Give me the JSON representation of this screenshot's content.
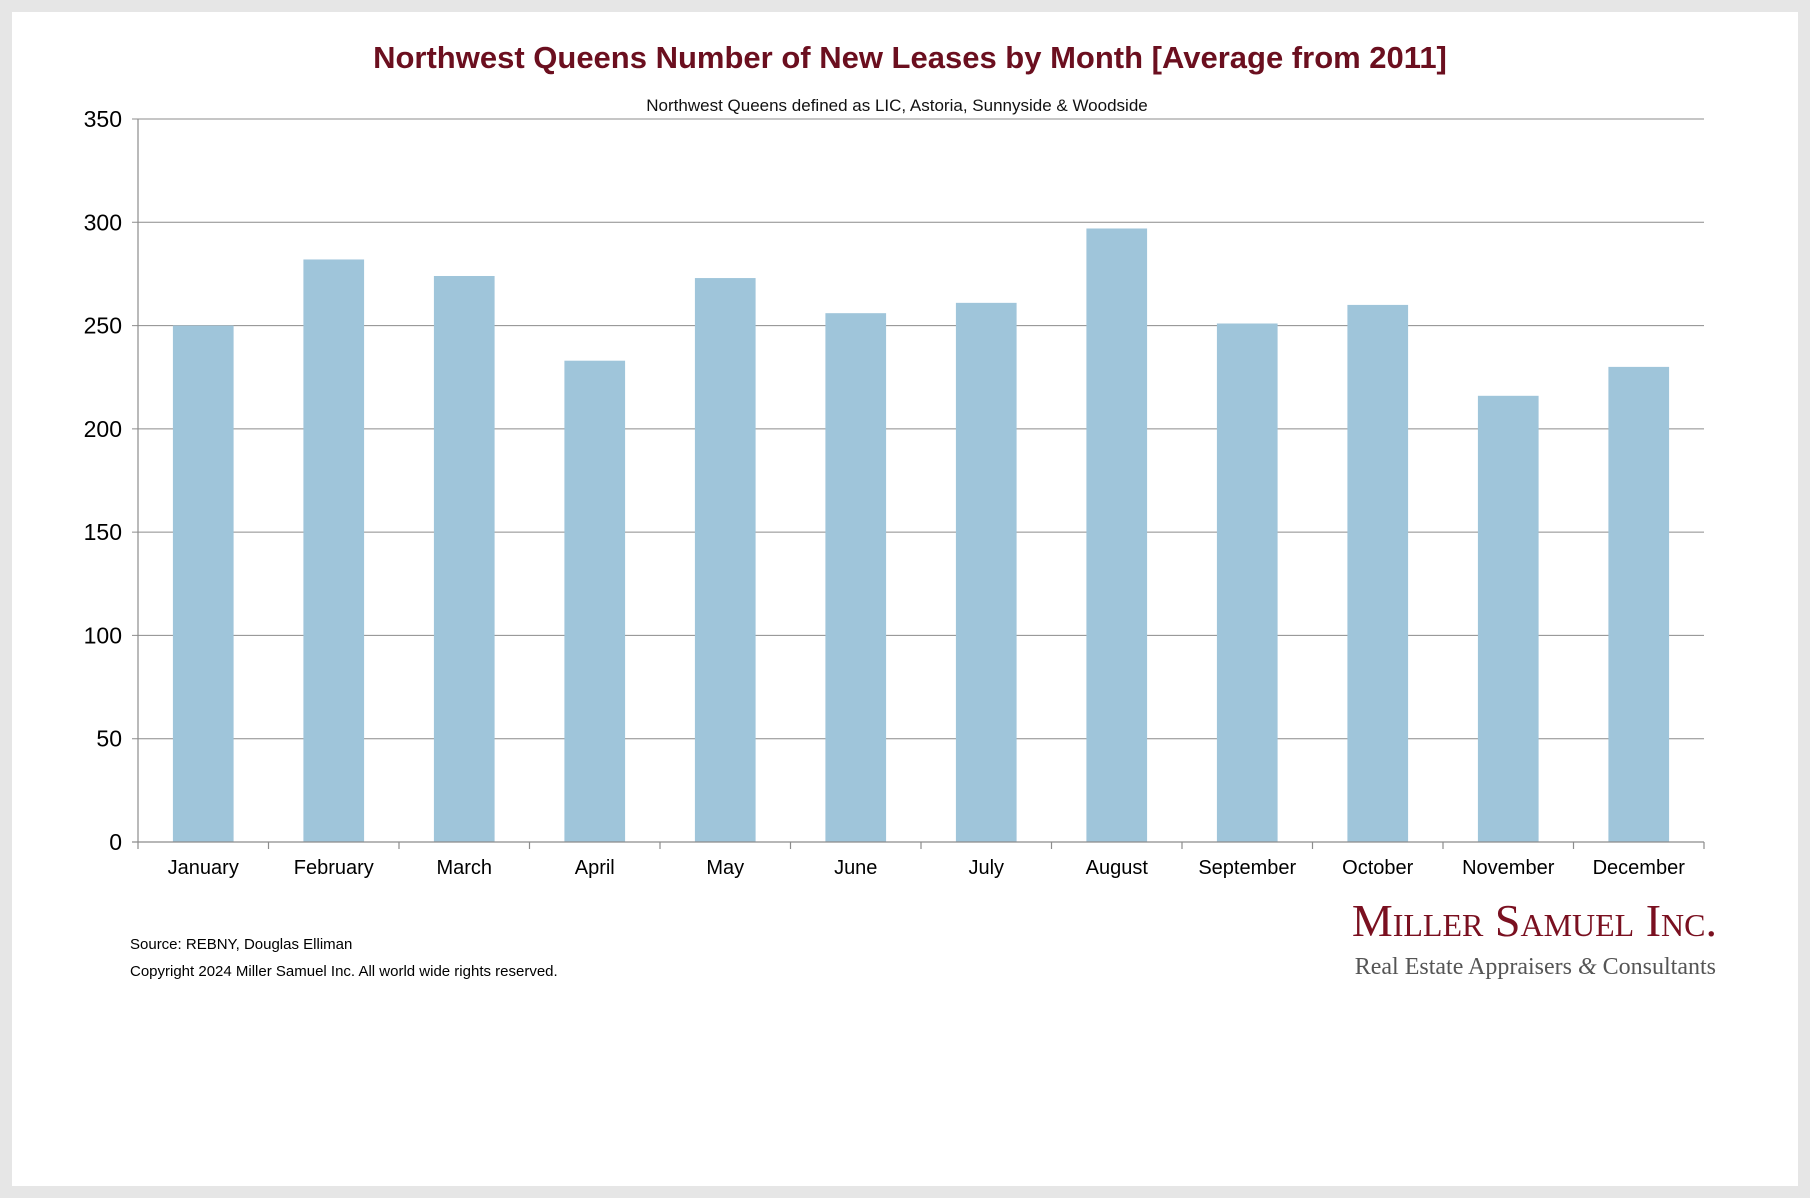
{
  "colors": {
    "title": "#6b0f1f",
    "bar": "#9fc5da",
    "grid": "#8c8c8c",
    "axis": "#8c8c8c",
    "logo": "#7a1020",
    "logo_tagline": "#555555"
  },
  "footer": {
    "source": "Source: REBNY, Douglas Elliman",
    "copyright": "Copyright 2024 Miller Samuel Inc.  All world wide rights reserved."
  },
  "logo": {
    "name": "Miller Samuel Inc.",
    "tagline_part1": "Real Estate Appraisers ",
    "tagline_amp": "&",
    "tagline_part2": " Consultants"
  },
  "chart_data": {
    "type": "bar",
    "title": "Northwest Queens Number of New Leases by Month [Average from 2011]",
    "subtitle": "Northwest Queens defined as LIC, Astoria, Sunnyside & Woodside",
    "xlabel": "",
    "ylabel": "",
    "categories": [
      "January",
      "February",
      "March",
      "April",
      "May",
      "June",
      "July",
      "August",
      "September",
      "October",
      "November",
      "December"
    ],
    "values": [
      250,
      282,
      274,
      233,
      273,
      256,
      261,
      297,
      251,
      260,
      216,
      230
    ],
    "ylim": [
      0,
      350
    ],
    "yticks": [
      0,
      50,
      100,
      150,
      200,
      250,
      300,
      350
    ],
    "grid": true,
    "legend": "none"
  }
}
